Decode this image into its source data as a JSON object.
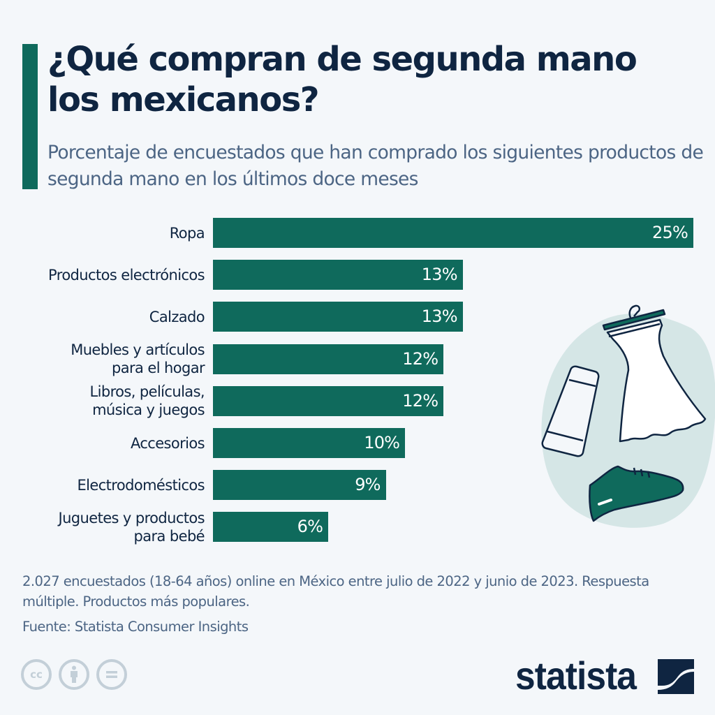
{
  "header": {
    "title": "¿Qué compran de segunda mano los mexicanos?",
    "subtitle": "Porcentaje de encuestados que han comprado los siguientes productos de segunda mano en los últimos doce meses"
  },
  "colors": {
    "accent": "#0f6a5c",
    "title": "#0f2541",
    "subtitle": "#4c6584",
    "background": "#f4f7fa",
    "illustration_bg": "#d5e6e6"
  },
  "chart_data": {
    "type": "bar",
    "orientation": "horizontal",
    "title": "¿Qué compran de segunda mano los mexicanos?",
    "xlabel": "",
    "ylabel": "",
    "unit": "%",
    "xlim": [
      0,
      25
    ],
    "grid": false,
    "categories": [
      "Ropa",
      "Productos electrónicos",
      "Calzado",
      "Muebles y artículos\npara el hogar",
      "Libros, películas,\nmúsica y juegos",
      "Accesorios",
      "Electrodomésticos",
      "Juguetes y productos\npara bebé"
    ],
    "values": [
      25,
      13,
      13,
      12,
      12,
      10,
      9,
      6
    ],
    "value_labels": [
      "25%",
      "13%",
      "13%",
      "12%",
      "12%",
      "10%",
      "9%",
      "6%"
    ]
  },
  "illustration": {
    "icons": [
      "dress-on-hanger",
      "smartphone",
      "sneaker"
    ]
  },
  "footer": {
    "note": "2.027 encuestados (18-64 años) online en México entre julio de 2022 y junio de 2023. Respuesta múltiple. Productos más populares.",
    "source": "Fuente: Statista Consumer Insights",
    "license_icons": [
      "cc",
      "by",
      "nd"
    ],
    "cc_label": "cc",
    "logo": "statista"
  }
}
